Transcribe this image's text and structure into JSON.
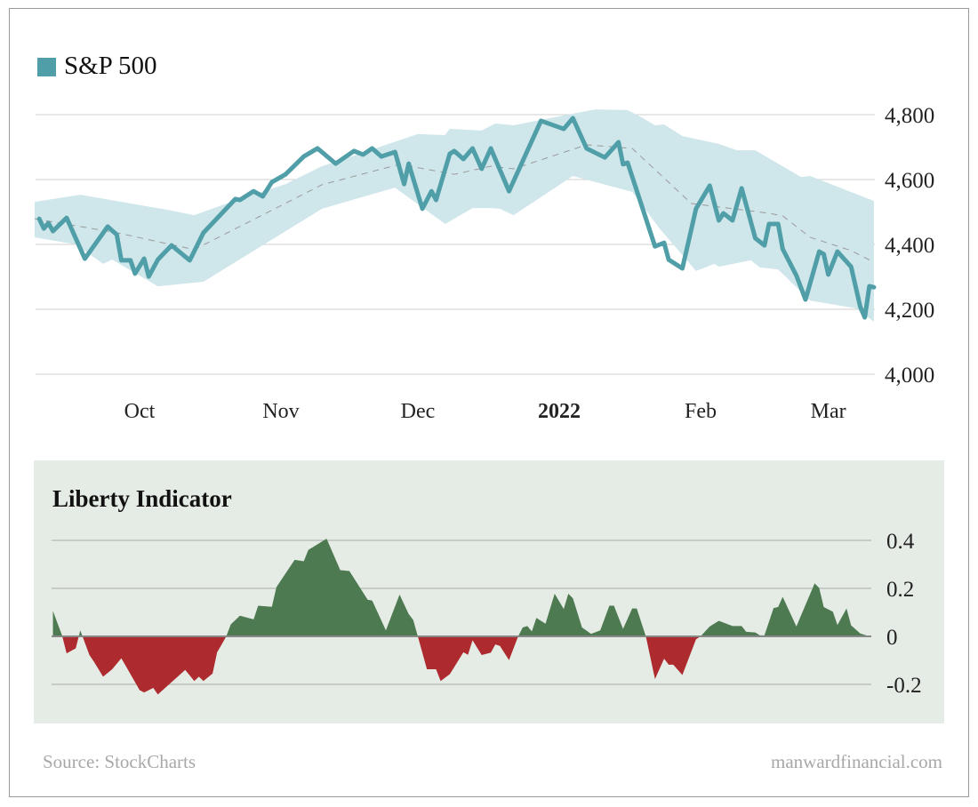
{
  "colors": {
    "line": "#4f9ea8",
    "band": "#cfe6ea",
    "ma": "#9a9a9a",
    "grid": "#cfcfcf",
    "positive": "#4e7a52",
    "negative": "#ad2b2f",
    "panel": "#e5ebe5"
  },
  "footer": {
    "source": "Source: StockCharts",
    "site": "manwardfinancial.com"
  },
  "chart_data": [
    {
      "type": "line",
      "legend": [
        "S&P 500"
      ],
      "legend_placement": "top-left",
      "yticks": [
        "4,000",
        "4,200",
        "4,400",
        "4,600",
        "4,800"
      ],
      "ytick_values": [
        4000,
        4200,
        4400,
        4600,
        4800
      ],
      "ylim": [
        4000,
        4800
      ],
      "x_tick_labels": [
        {
          "label": "Oct",
          "date": "2021-10-01",
          "bold": false
        },
        {
          "label": "Nov",
          "date": "2021-11-01",
          "bold": false
        },
        {
          "label": "Dec",
          "date": "2021-12-01",
          "bold": false
        },
        {
          "label": "2022",
          "date": "2022-01-01",
          "bold": true
        },
        {
          "label": "Feb",
          "date": "2022-02-01",
          "bold": false
        },
        {
          "label": "Mar",
          "date": "2022-03-01",
          "bold": false
        }
      ],
      "grid": true,
      "series": [
        {
          "name": "S&P 500",
          "role": "price",
          "points": [
            [
              "2021-09-09",
              4479
            ],
            [
              "2021-09-10",
              4449
            ],
            [
              "2021-09-11",
              4466
            ],
            [
              "2021-09-12",
              4441
            ],
            [
              "2021-09-15",
              4482
            ],
            [
              "2021-09-19",
              4356
            ],
            [
              "2021-09-24",
              4455
            ],
            [
              "2021-09-26",
              4430
            ],
            [
              "2021-09-27",
              4351
            ],
            [
              "2021-09-29",
              4351
            ],
            [
              "2021-09-30",
              4310
            ],
            [
              "2021-10-02",
              4356
            ],
            [
              "2021-10-03",
              4301
            ],
            [
              "2021-10-05",
              4353
            ],
            [
              "2021-10-08",
              4397
            ],
            [
              "2021-10-12",
              4351
            ],
            [
              "2021-10-15",
              4436
            ],
            [
              "2021-10-22",
              4540
            ],
            [
              "2021-10-23",
              4537
            ],
            [
              "2021-10-26",
              4564
            ],
            [
              "2021-10-28",
              4548
            ],
            [
              "2021-10-30",
              4592
            ],
            [
              "2021-11-02",
              4616
            ],
            [
              "2021-11-06",
              4671
            ],
            [
              "2021-11-09",
              4696
            ],
            [
              "2021-11-13",
              4649
            ],
            [
              "2021-11-17",
              4688
            ],
            [
              "2021-11-19",
              4677
            ],
            [
              "2021-11-21",
              4696
            ],
            [
              "2021-11-23",
              4671
            ],
            [
              "2021-11-26",
              4685
            ],
            [
              "2021-11-28",
              4586
            ],
            [
              "2021-11-29",
              4649
            ],
            [
              "2021-12-02",
              4510
            ],
            [
              "2021-12-04",
              4564
            ],
            [
              "2021-12-05",
              4537
            ],
            [
              "2021-12-08",
              4679
            ],
            [
              "2021-12-09",
              4688
            ],
            [
              "2021-12-11",
              4663
            ],
            [
              "2021-12-13",
              4696
            ],
            [
              "2021-12-15",
              4633
            ],
            [
              "2021-12-17",
              4696
            ],
            [
              "2021-12-21",
              4564
            ],
            [
              "2021-12-28",
              4781
            ],
            [
              "2022-01-02",
              4756
            ],
            [
              "2022-01-04",
              4789
            ],
            [
              "2022-01-07",
              4696
            ],
            [
              "2022-01-11",
              4668
            ],
            [
              "2022-01-14",
              4715
            ],
            [
              "2022-01-15",
              4647
            ],
            [
              "2022-01-16",
              4652
            ],
            [
              "2022-01-22",
              4394
            ],
            [
              "2022-01-24",
              4405
            ],
            [
              "2022-01-25",
              4353
            ],
            [
              "2022-01-28",
              4326
            ],
            [
              "2022-01-31",
              4510
            ],
            [
              "2022-02-03",
              4581
            ],
            [
              "2022-02-05",
              4474
            ],
            [
              "2022-02-06",
              4496
            ],
            [
              "2022-02-08",
              4474
            ],
            [
              "2022-02-10",
              4573
            ],
            [
              "2022-02-13",
              4419
            ],
            [
              "2022-02-15",
              4397
            ],
            [
              "2022-02-16",
              4463
            ],
            [
              "2022-02-18",
              4463
            ],
            [
              "2022-02-19",
              4386
            ],
            [
              "2022-02-22",
              4304
            ],
            [
              "2022-02-24",
              4230
            ],
            [
              "2022-02-27",
              4378
            ],
            [
              "2022-02-28",
              4370
            ],
            [
              "2022-03-01",
              4307
            ],
            [
              "2022-03-03",
              4378
            ],
            [
              "2022-03-06",
              4331
            ],
            [
              "2022-03-08",
              4208
            ],
            [
              "2022-03-09",
              4175
            ],
            [
              "2022-03-10",
              4271
            ],
            [
              "2022-03-11",
              4268
            ]
          ]
        },
        {
          "role": "moving-average",
          "points": [
            [
              "2021-09-08",
              4479
            ],
            [
              "2021-09-26",
              4436
            ],
            [
              "2021-10-13",
              4384
            ],
            [
              "2021-11-10",
              4584
            ],
            [
              "2021-11-27",
              4647
            ],
            [
              "2021-12-09",
              4616
            ],
            [
              "2021-12-17",
              4641
            ],
            [
              "2021-12-22",
              4633
            ],
            [
              "2022-01-07",
              4707
            ],
            [
              "2022-01-17",
              4696
            ],
            [
              "2022-01-30",
              4526
            ],
            [
              "2022-02-16",
              4496
            ],
            [
              "2022-02-19",
              4488
            ],
            [
              "2022-02-25",
              4422
            ],
            [
              "2022-03-06",
              4381
            ],
            [
              "2022-03-11",
              4345
            ]
          ]
        },
        {
          "role": "band-upper",
          "points": [
            [
              "2021-09-08",
              4531
            ],
            [
              "2021-09-18",
              4553
            ],
            [
              "2021-10-07",
              4507
            ],
            [
              "2021-10-13",
              4490
            ],
            [
              "2021-10-21",
              4531
            ],
            [
              "2021-11-02",
              4586
            ],
            [
              "2021-11-10",
              4641
            ],
            [
              "2021-12-01",
              4740
            ],
            [
              "2021-12-07",
              4737
            ],
            [
              "2021-12-08",
              4756
            ],
            [
              "2021-12-15",
              4751
            ],
            [
              "2021-12-18",
              4773
            ],
            [
              "2021-12-22",
              4767
            ],
            [
              "2022-01-04",
              4803
            ],
            [
              "2022-01-09",
              4816
            ],
            [
              "2022-01-16",
              4814
            ],
            [
              "2022-01-19",
              4792
            ],
            [
              "2022-01-22",
              4767
            ],
            [
              "2022-01-24",
              4770
            ],
            [
              "2022-01-28",
              4734
            ],
            [
              "2022-02-05",
              4710
            ],
            [
              "2022-02-09",
              4690
            ],
            [
              "2022-02-13",
              4690
            ],
            [
              "2022-02-23",
              4608
            ],
            [
              "2022-02-25",
              4611
            ],
            [
              "2022-03-11",
              4534
            ]
          ]
        },
        {
          "role": "band-lower",
          "points": [
            [
              "2021-09-08",
              4422
            ],
            [
              "2021-09-17",
              4400
            ],
            [
              "2021-09-23",
              4340
            ],
            [
              "2021-09-25",
              4353
            ],
            [
              "2021-10-05",
              4271
            ],
            [
              "2021-10-15",
              4285
            ],
            [
              "2021-11-10",
              4510
            ],
            [
              "2021-11-26",
              4575
            ],
            [
              "2021-12-07",
              4463
            ],
            [
              "2021-12-13",
              4512
            ],
            [
              "2021-12-17",
              4512
            ],
            [
              "2021-12-19",
              4510
            ],
            [
              "2021-12-22",
              4490
            ],
            [
              "2022-01-04",
              4611
            ],
            [
              "2022-01-17",
              4562
            ],
            [
              "2022-01-23",
              4449
            ],
            [
              "2022-01-31",
              4318
            ],
            [
              "2022-02-04",
              4340
            ],
            [
              "2022-02-05",
              4331
            ],
            [
              "2022-02-12",
              4351
            ],
            [
              "2022-02-14",
              4329
            ],
            [
              "2022-02-18",
              4323
            ],
            [
              "2022-02-25",
              4227
            ],
            [
              "2022-03-07",
              4203
            ],
            [
              "2022-03-11",
              4162
            ]
          ]
        }
      ]
    },
    {
      "type": "area",
      "title": "Liberty Indicator",
      "yticks": [
        "-0.2",
        "0",
        "0.2",
        "0.4"
      ],
      "ytick_values": [
        -0.2,
        0,
        0.2,
        0.4
      ],
      "ylim": [
        -0.27,
        0.43
      ],
      "grid": true,
      "points": [
        [
          "2021-09-12",
          0.106
        ],
        [
          "2021-09-14",
          0.004
        ],
        [
          "2021-09-15",
          -0.071
        ],
        [
          "2021-09-17",
          -0.05
        ],
        [
          "2021-09-18",
          0.025
        ],
        [
          "2021-09-20",
          -0.078
        ],
        [
          "2021-09-21",
          -0.106
        ],
        [
          "2021-09-23",
          -0.168
        ],
        [
          "2021-09-25",
          -0.137
        ],
        [
          "2021-09-27",
          -0.091
        ],
        [
          "2021-10-01",
          -0.224
        ],
        [
          "2021-10-02",
          -0.234
        ],
        [
          "2021-10-04",
          -0.215
        ],
        [
          "2021-10-05",
          -0.242
        ],
        [
          "2021-10-11",
          -0.14
        ],
        [
          "2021-10-13",
          -0.186
        ],
        [
          "2021-10-14",
          -0.168
        ],
        [
          "2021-10-15",
          -0.186
        ],
        [
          "2021-10-17",
          -0.155
        ],
        [
          "2021-10-18",
          -0.066
        ],
        [
          "2021-10-19",
          -0.034
        ],
        [
          "2021-10-20",
          0
        ],
        [
          "2021-10-21",
          0.05
        ],
        [
          "2021-10-23",
          0.086
        ],
        [
          "2021-10-26",
          0.071
        ],
        [
          "2021-10-27",
          0.128
        ],
        [
          "2021-10-30",
          0.123
        ],
        [
          "2021-10-31",
          0.205
        ],
        [
          "2021-11-04",
          0.319
        ],
        [
          "2021-11-06",
          0.313
        ],
        [
          "2021-11-07",
          0.36
        ],
        [
          "2021-11-11",
          0.407
        ],
        [
          "2021-11-14",
          0.276
        ],
        [
          "2021-11-16",
          0.272
        ],
        [
          "2021-11-20",
          0.153
        ],
        [
          "2021-11-21",
          0.149
        ],
        [
          "2021-11-24",
          0.025
        ],
        [
          "2021-11-27",
          0.174
        ],
        [
          "2021-11-29",
          0.093
        ],
        [
          "2021-11-30",
          0.068
        ],
        [
          "2021-12-01",
          0
        ],
        [
          "2021-12-03",
          -0.137
        ],
        [
          "2021-12-05",
          -0.137
        ],
        [
          "2021-12-06",
          -0.186
        ],
        [
          "2021-12-08",
          -0.158
        ],
        [
          "2021-12-09",
          -0.128
        ],
        [
          "2021-12-11",
          -0.066
        ],
        [
          "2021-12-12",
          -0.077
        ],
        [
          "2021-12-13",
          -0.016
        ],
        [
          "2021-12-15",
          -0.078
        ],
        [
          "2021-12-17",
          -0.068
        ],
        [
          "2021-12-18",
          -0.034
        ],
        [
          "2021-12-19",
          -0.04
        ],
        [
          "2021-12-21",
          -0.099
        ],
        [
          "2021-12-23",
          0
        ],
        [
          "2021-12-24",
          0.037
        ],
        [
          "2021-12-25",
          0.043
        ],
        [
          "2021-12-26",
          0.021
        ],
        [
          "2021-12-27",
          0.077
        ],
        [
          "2021-12-29",
          0.053
        ],
        [
          "2021-12-31",
          0.178
        ],
        [
          "2022-01-02",
          0.114
        ],
        [
          "2022-01-03",
          0.178
        ],
        [
          "2022-01-04",
          0.159
        ],
        [
          "2022-01-06",
          0.037
        ],
        [
          "2022-01-08",
          0.01
        ],
        [
          "2022-01-10",
          0.025
        ],
        [
          "2022-01-12",
          0.128
        ],
        [
          "2022-01-13",
          0.128
        ],
        [
          "2022-01-15",
          0.031
        ],
        [
          "2022-01-17",
          0.116
        ],
        [
          "2022-01-18",
          0.116
        ],
        [
          "2022-01-20",
          0
        ],
        [
          "2022-01-22",
          -0.178
        ],
        [
          "2022-01-24",
          -0.093
        ],
        [
          "2022-01-25",
          -0.118
        ],
        [
          "2022-01-26",
          -0.118
        ],
        [
          "2022-01-28",
          -0.161
        ],
        [
          "2022-01-31",
          -0.012
        ],
        [
          "2022-02-01",
          0
        ],
        [
          "2022-02-03",
          0.041
        ],
        [
          "2022-02-05",
          0.065
        ],
        [
          "2022-02-08",
          0.043
        ],
        [
          "2022-02-10",
          0.043
        ],
        [
          "2022-02-11",
          0.019
        ],
        [
          "2022-02-13",
          0.016
        ],
        [
          "2022-02-14",
          0.004
        ],
        [
          "2022-02-15",
          0.004
        ],
        [
          "2022-02-17",
          0.118
        ],
        [
          "2022-02-18",
          0.122
        ],
        [
          "2022-02-19",
          0.165
        ],
        [
          "2022-02-22",
          0.041
        ],
        [
          "2022-02-26",
          0.221
        ],
        [
          "2022-02-27",
          0.202
        ],
        [
          "2022-02-28",
          0.122
        ],
        [
          "2022-03-02",
          0.103
        ],
        [
          "2022-03-03",
          0.047
        ],
        [
          "2022-03-05",
          0.116
        ],
        [
          "2022-03-06",
          0.046
        ],
        [
          "2022-03-08",
          0.012
        ],
        [
          "2022-03-10",
          0
        ]
      ]
    }
  ]
}
